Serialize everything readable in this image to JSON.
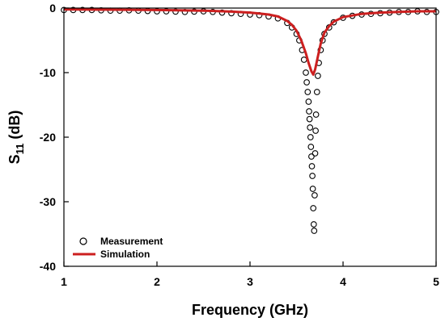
{
  "chart_data": {
    "type": "line",
    "xlabel": "Frequency (GHz)",
    "ylabel": {
      "main": "S",
      "sub": "11",
      "rest": " (dB)"
    },
    "xlim": [
      1,
      5
    ],
    "ylim": [
      -40,
      0
    ],
    "xticks": [
      1,
      2,
      3,
      4,
      5
    ],
    "yticks": [
      0,
      -10,
      -20,
      -30,
      -40
    ],
    "grid": false,
    "legend_position": "bottom-left",
    "series": [
      {
        "name": "Measurement",
        "style": "open-circle markers",
        "color": "#000000",
        "x": [
          1.0,
          1.1,
          1.2,
          1.3,
          1.4,
          1.5,
          1.6,
          1.7,
          1.8,
          1.9,
          2.0,
          2.1,
          2.2,
          2.3,
          2.4,
          2.5,
          2.6,
          2.7,
          2.8,
          2.9,
          3.0,
          3.1,
          3.2,
          3.3,
          3.4,
          3.45,
          3.5,
          3.53,
          3.56,
          3.58,
          3.6,
          3.61,
          3.62,
          3.63,
          3.635,
          3.64,
          3.645,
          3.65,
          3.655,
          3.66,
          3.665,
          3.67,
          3.675,
          3.68,
          3.685,
          3.69,
          3.695,
          3.7,
          3.705,
          3.71,
          3.72,
          3.73,
          3.74,
          3.76,
          3.78,
          3.8,
          3.85,
          3.9,
          4.0,
          4.1,
          4.2,
          4.3,
          4.4,
          4.5,
          4.6,
          4.7,
          4.8,
          4.9,
          5.0
        ],
        "y": [
          -0.3,
          -0.3,
          -0.3,
          -0.3,
          -0.35,
          -0.4,
          -0.4,
          -0.35,
          -0.4,
          -0.45,
          -0.5,
          -0.5,
          -0.55,
          -0.6,
          -0.55,
          -0.5,
          -0.6,
          -0.7,
          -0.8,
          -0.9,
          -1.0,
          -1.1,
          -1.3,
          -1.6,
          -2.3,
          -3.0,
          -4.0,
          -5.0,
          -6.5,
          -8.0,
          -10.0,
          -11.5,
          -13.0,
          -14.5,
          -16.0,
          -17.2,
          -18.5,
          -20.0,
          -21.5,
          -23.0,
          -24.5,
          -26.0,
          -28.0,
          -31.0,
          -33.5,
          -34.5,
          -29.0,
          -22.5,
          -19.0,
          -16.5,
          -13.0,
          -10.5,
          -8.5,
          -6.5,
          -5.0,
          -4.0,
          -3.0,
          -2.2,
          -1.5,
          -1.2,
          -1.0,
          -0.9,
          -0.8,
          -0.7,
          -0.6,
          -0.6,
          -0.5,
          -0.6,
          -0.6
        ]
      },
      {
        "name": "Simulation",
        "style": "line",
        "color": "#cc1f1f",
        "x": [
          1.0,
          1.5,
          2.0,
          2.5,
          2.8,
          3.0,
          3.1,
          3.2,
          3.3,
          3.4,
          3.45,
          3.5,
          3.55,
          3.6,
          3.63,
          3.66,
          3.68,
          3.7,
          3.73,
          3.76,
          3.8,
          3.85,
          3.9,
          4.0,
          4.2,
          4.4,
          4.6,
          4.8,
          5.0
        ],
        "y": [
          -0.2,
          -0.25,
          -0.3,
          -0.4,
          -0.55,
          -0.7,
          -0.85,
          -1.0,
          -1.3,
          -2.0,
          -2.6,
          -3.5,
          -5.0,
          -7.0,
          -8.5,
          -9.8,
          -10.3,
          -9.5,
          -7.5,
          -5.5,
          -3.8,
          -2.8,
          -2.1,
          -1.4,
          -0.9,
          -0.7,
          -0.6,
          -0.5,
          -0.5
        ]
      }
    ]
  }
}
